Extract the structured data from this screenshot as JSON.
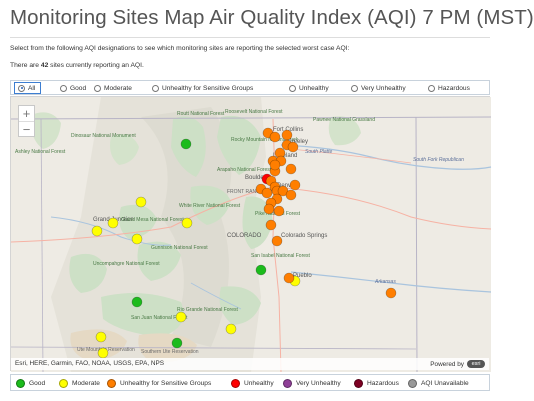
{
  "page": {
    "title": "Monitoring Sites Map Air Quality Index (AQI) 7 PM (MST)",
    "instructions": "Select from the following AQI designations to see which monitoring sites are reporting the selected worst case AQI:",
    "count_prefix": "There are ",
    "count_value": "42",
    "count_suffix": " sites currently reporting an AQI."
  },
  "filter": {
    "options": [
      {
        "label": "All",
        "selected": true
      },
      {
        "label": "Good",
        "selected": false
      },
      {
        "label": "Moderate",
        "selected": false
      },
      {
        "label": "Unhealthy for Sensitive Groups",
        "selected": false
      },
      {
        "label": "Unhealthy",
        "selected": false
      },
      {
        "label": "Very Unhealthy",
        "selected": false
      },
      {
        "label": "Hazardous",
        "selected": false
      }
    ]
  },
  "map": {
    "zoom_in": "+",
    "zoom_out": "−",
    "attribution": "Esri, HERE, Garmin, FAO, NOAA, USGS, EPA, NPS",
    "powered_by": "Powered by",
    "logo_text": "esri",
    "labels": {
      "routt": "Routt National Forest",
      "roosevelt": "Roosevelt National Forest",
      "pawnee": "Pawnee National Grassland",
      "dinosaur": "Dinosaur National Monument",
      "rmnp": "Rocky Mountain National Park",
      "arapaho": "Arapaho National Forest",
      "fort_collins": "Fort Collins",
      "greeley": "Greeley",
      "loveland": "Loveland",
      "boulder": "Boulder",
      "denver": "Denver",
      "front_range": "FRONT RANGE",
      "white_river": "White River National Forest",
      "pike": "Pike National Forest",
      "colorado": "COLORADO",
      "colorado_springs": "Colorado Springs",
      "grand_junction": "Grand Junction",
      "grand_mesa": "Grand Mesa National Forest",
      "gunnison": "Gunnison National Forest",
      "uncompahgre": "Uncompahgre National Forest",
      "san_isabel": "San Isabel National Forest",
      "pueblo": "Pueblo",
      "rio_grande": "Rio Grande National Forest",
      "san_juan": "San Juan National Forest",
      "ute": "Ute Mountain Reservation",
      "southern_ute": "Southern Ute Reservation",
      "republican": "South Fork Republican",
      "south_platte": "South Platte",
      "arkansas": "Arkansas",
      "ashley": "Ashley National Forest"
    },
    "sites": [
      {
        "category": "good"
      },
      {
        "category": "usg"
      },
      {
        "category": "usg"
      },
      {
        "category": "usg"
      },
      {
        "category": "usg"
      },
      {
        "category": "usg"
      },
      {
        "category": "usg"
      },
      {
        "category": "usg"
      },
      {
        "category": "usg"
      },
      {
        "category": "unhealthy"
      },
      {
        "category": "usg"
      },
      {
        "category": "usg"
      },
      {
        "category": "usg"
      },
      {
        "category": "usg"
      },
      {
        "category": "usg"
      },
      {
        "category": "usg"
      },
      {
        "category": "usg"
      },
      {
        "category": "usg"
      },
      {
        "category": "usg"
      },
      {
        "category": "usg"
      },
      {
        "category": "usg"
      },
      {
        "category": "usg"
      },
      {
        "category": "moderate"
      },
      {
        "category": "moderate"
      },
      {
        "category": "moderate"
      },
      {
        "category": "moderate"
      },
      {
        "category": "moderate"
      },
      {
        "category": "good"
      },
      {
        "category": "usg"
      },
      {
        "category": "moderate"
      },
      {
        "category": "usg"
      },
      {
        "category": "usg"
      },
      {
        "category": "good"
      },
      {
        "category": "moderate"
      },
      {
        "category": "good"
      },
      {
        "category": "moderate"
      },
      {
        "category": "moderate"
      },
      {
        "category": "moderate"
      },
      {
        "category": "usg"
      },
      {
        "category": "usg"
      },
      {
        "category": "usg"
      },
      {
        "category": "usg"
      }
    ]
  },
  "legend": {
    "items": [
      {
        "label": "Good",
        "color": "#1cbb1c"
      },
      {
        "label": "Moderate",
        "color": "#ffff00"
      },
      {
        "label": "Unhealthy for Sensitive Groups",
        "color": "#ff7e00"
      },
      {
        "label": "Unhealthy",
        "color": "#ff0000"
      },
      {
        "label": "Very Unhealthy",
        "color": "#8f3f97"
      },
      {
        "label": "Hazardous",
        "color": "#7e0023"
      },
      {
        "label": "AQI Unavailable",
        "color": "#999999"
      }
    ]
  },
  "colors": {
    "good": "#1cbb1c",
    "moderate": "#ffff00",
    "usg": "#ff7e00",
    "unhealthy": "#ff0000"
  }
}
